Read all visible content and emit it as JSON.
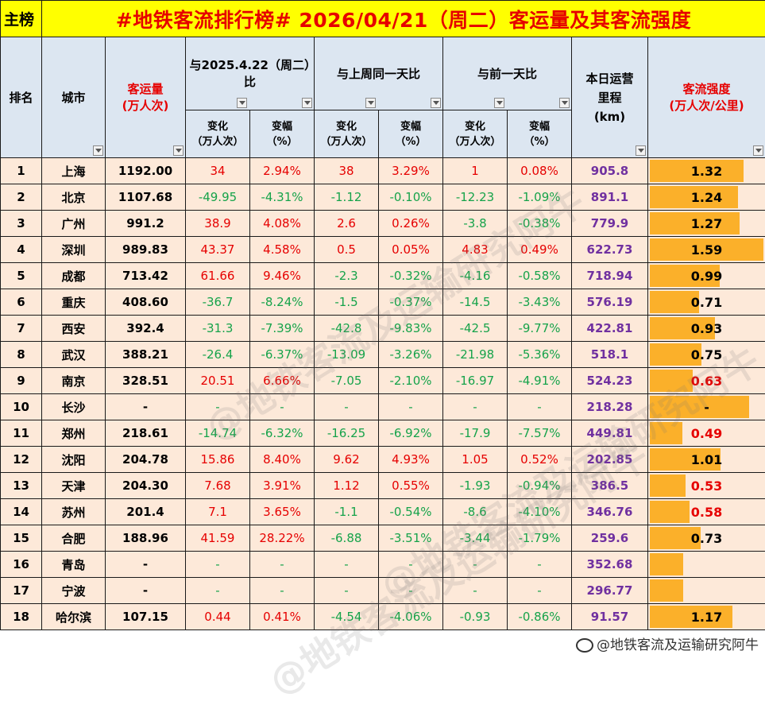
{
  "title": {
    "left": "主榜",
    "main": "#地铁客流排行榜# 2026/04/21（周二）客运量及其客流强度"
  },
  "headers": {
    "rank": "排名",
    "city": "城市",
    "volume": "客运量\n(万人次)",
    "vs_last_year": "与2025.4.22（周二）比",
    "vs_last_week": "与上周同一天比",
    "vs_prev_day": "与前一天比",
    "mileage": "本日运营\n里程\n(km)",
    "intensity": "客流强度\n(万人次/公里)",
    "change": "变化\n（万人次）",
    "pct": "变幅\n（%）"
  },
  "rows": [
    {
      "rank": "1",
      "city": "上海",
      "volume": "1192.00",
      "yc": "34",
      "yp": "2.94%",
      "wc": "38",
      "wp": "3.29%",
      "dc": "1",
      "dp": "0.08%",
      "mileage": "905.8",
      "intensity": "1.32",
      "int_value": 1.32,
      "int_red": false
    },
    {
      "rank": "2",
      "city": "北京",
      "volume": "1107.68",
      "yc": "-49.95",
      "yp": "-4.31%",
      "wc": "-1.12",
      "wp": "-0.10%",
      "dc": "-12.23",
      "dp": "-1.09%",
      "mileage": "891.1",
      "intensity": "1.24",
      "int_value": 1.24,
      "int_red": false
    },
    {
      "rank": "3",
      "city": "广州",
      "volume": "991.2",
      "yc": "38.9",
      "yp": "4.08%",
      "wc": "2.6",
      "wp": "0.26%",
      "dc": "-3.8",
      "dp": "-0.38%",
      "mileage": "779.9",
      "intensity": "1.27",
      "int_value": 1.27,
      "int_red": false
    },
    {
      "rank": "4",
      "city": "深圳",
      "volume": "989.83",
      "yc": "43.37",
      "yp": "4.58%",
      "wc": "0.5",
      "wp": "0.05%",
      "dc": "4.83",
      "dp": "0.49%",
      "mileage": "622.73",
      "intensity": "1.59",
      "int_value": 1.59,
      "int_red": false
    },
    {
      "rank": "5",
      "city": "成都",
      "volume": "713.42",
      "yc": "61.66",
      "yp": "9.46%",
      "wc": "-2.3",
      "wp": "-0.32%",
      "dc": "-4.16",
      "dp": "-0.58%",
      "mileage": "718.94",
      "intensity": "0.99",
      "int_value": 0.99,
      "int_red": false
    },
    {
      "rank": "6",
      "city": "重庆",
      "volume": "408.60",
      "yc": "-36.7",
      "yp": "-8.24%",
      "wc": "-1.5",
      "wp": "-0.37%",
      "dc": "-14.5",
      "dp": "-3.43%",
      "mileage": "576.19",
      "intensity": "0.71",
      "int_value": 0.71,
      "int_red": false
    },
    {
      "rank": "7",
      "city": "西安",
      "volume": "392.4",
      "yc": "-31.3",
      "yp": "-7.39%",
      "wc": "-42.8",
      "wp": "-9.83%",
      "dc": "-42.5",
      "dp": "-9.77%",
      "mileage": "422.81",
      "intensity": "0.93",
      "int_value": 0.93,
      "int_red": false
    },
    {
      "rank": "8",
      "city": "武汉",
      "volume": "388.21",
      "yc": "-26.4",
      "yp": "-6.37%",
      "wc": "-13.09",
      "wp": "-3.26%",
      "dc": "-21.98",
      "dp": "-5.36%",
      "mileage": "518.1",
      "intensity": "0.75",
      "int_value": 0.75,
      "int_red": false
    },
    {
      "rank": "9",
      "city": "南京",
      "volume": "328.51",
      "yc": "20.51",
      "yp": "6.66%",
      "wc": "-7.05",
      "wp": "-2.10%",
      "dc": "-16.97",
      "dp": "-4.91%",
      "mileage": "524.23",
      "intensity": "0.63",
      "int_value": 0.63,
      "int_red": true
    },
    {
      "rank": "10",
      "city": "长沙",
      "volume": "-",
      "yc": "-",
      "yp": "-",
      "wc": "-",
      "wp": "-",
      "dc": "-",
      "dp": "-",
      "mileage": "218.28",
      "intensity": "-",
      "int_value": 1.4,
      "int_red": false
    },
    {
      "rank": "11",
      "city": "郑州",
      "volume": "218.61",
      "yc": "-14.74",
      "yp": "-6.32%",
      "wc": "-16.25",
      "wp": "-6.92%",
      "dc": "-17.9",
      "dp": "-7.57%",
      "mileage": "449.81",
      "intensity": "0.49",
      "int_value": 0.49,
      "int_red": true
    },
    {
      "rank": "12",
      "city": "沈阳",
      "volume": "204.78",
      "yc": "15.86",
      "yp": "8.40%",
      "wc": "9.62",
      "wp": "4.93%",
      "dc": "1.05",
      "dp": "0.52%",
      "mileage": "202.85",
      "intensity": "1.01",
      "int_value": 1.01,
      "int_red": false
    },
    {
      "rank": "13",
      "city": "天津",
      "volume": "204.30",
      "yc": "7.68",
      "yp": "3.91%",
      "wc": "1.12",
      "wp": "0.55%",
      "dc": "-1.93",
      "dp": "-0.94%",
      "mileage": "386.5",
      "intensity": "0.53",
      "int_value": 0.53,
      "int_red": true
    },
    {
      "rank": "14",
      "city": "苏州",
      "volume": "201.4",
      "yc": "7.1",
      "yp": "3.65%",
      "wc": "-1.1",
      "wp": "-0.54%",
      "dc": "-8.6",
      "dp": "-4.10%",
      "mileage": "346.76",
      "intensity": "0.58",
      "int_value": 0.58,
      "int_red": true
    },
    {
      "rank": "15",
      "city": "合肥",
      "volume": "188.96",
      "yc": "41.59",
      "yp": "28.22%",
      "wc": "-6.88",
      "wp": "-3.51%",
      "dc": "-3.44",
      "dp": "-1.79%",
      "mileage": "259.6",
      "intensity": "0.73",
      "int_value": 0.73,
      "int_red": false
    },
    {
      "rank": "16",
      "city": "青岛",
      "volume": "-",
      "yc": "-",
      "yp": "-",
      "wc": "-",
      "wp": "-",
      "dc": "-",
      "dp": "-",
      "mileage": "352.68",
      "intensity": "",
      "int_value": 0.5,
      "int_red": false
    },
    {
      "rank": "17",
      "city": "宁波",
      "volume": "-",
      "yc": "-",
      "yp": "-",
      "wc": "-",
      "wp": "-",
      "dc": "-",
      "dp": "-",
      "mileage": "296.77",
      "intensity": "",
      "int_value": 0.5,
      "int_red": false
    },
    {
      "rank": "18",
      "city": "哈尔滨",
      "volume": "107.15",
      "yc": "0.44",
      "yp": "0.41%",
      "wc": "-4.54",
      "wp": "-4.06%",
      "dc": "-0.93",
      "dp": "-0.86%",
      "mileage": "91.57",
      "intensity": "1.17",
      "int_value": 1.17,
      "int_red": false
    }
  ],
  "intensity_max": 1.59,
  "watermark": "@地铁客流及运输研究阿牛",
  "credit": "@地铁客流及运输研究阿牛",
  "colors": {
    "title_bg": "#ffff00",
    "title_text": "#e60000",
    "header_bg": "#dce6f1",
    "row_bg": "#fde9d9",
    "positive": "#e60000",
    "negative": "#16a34a",
    "mileage": "#7030a0",
    "bar": "#fbb02a"
  }
}
